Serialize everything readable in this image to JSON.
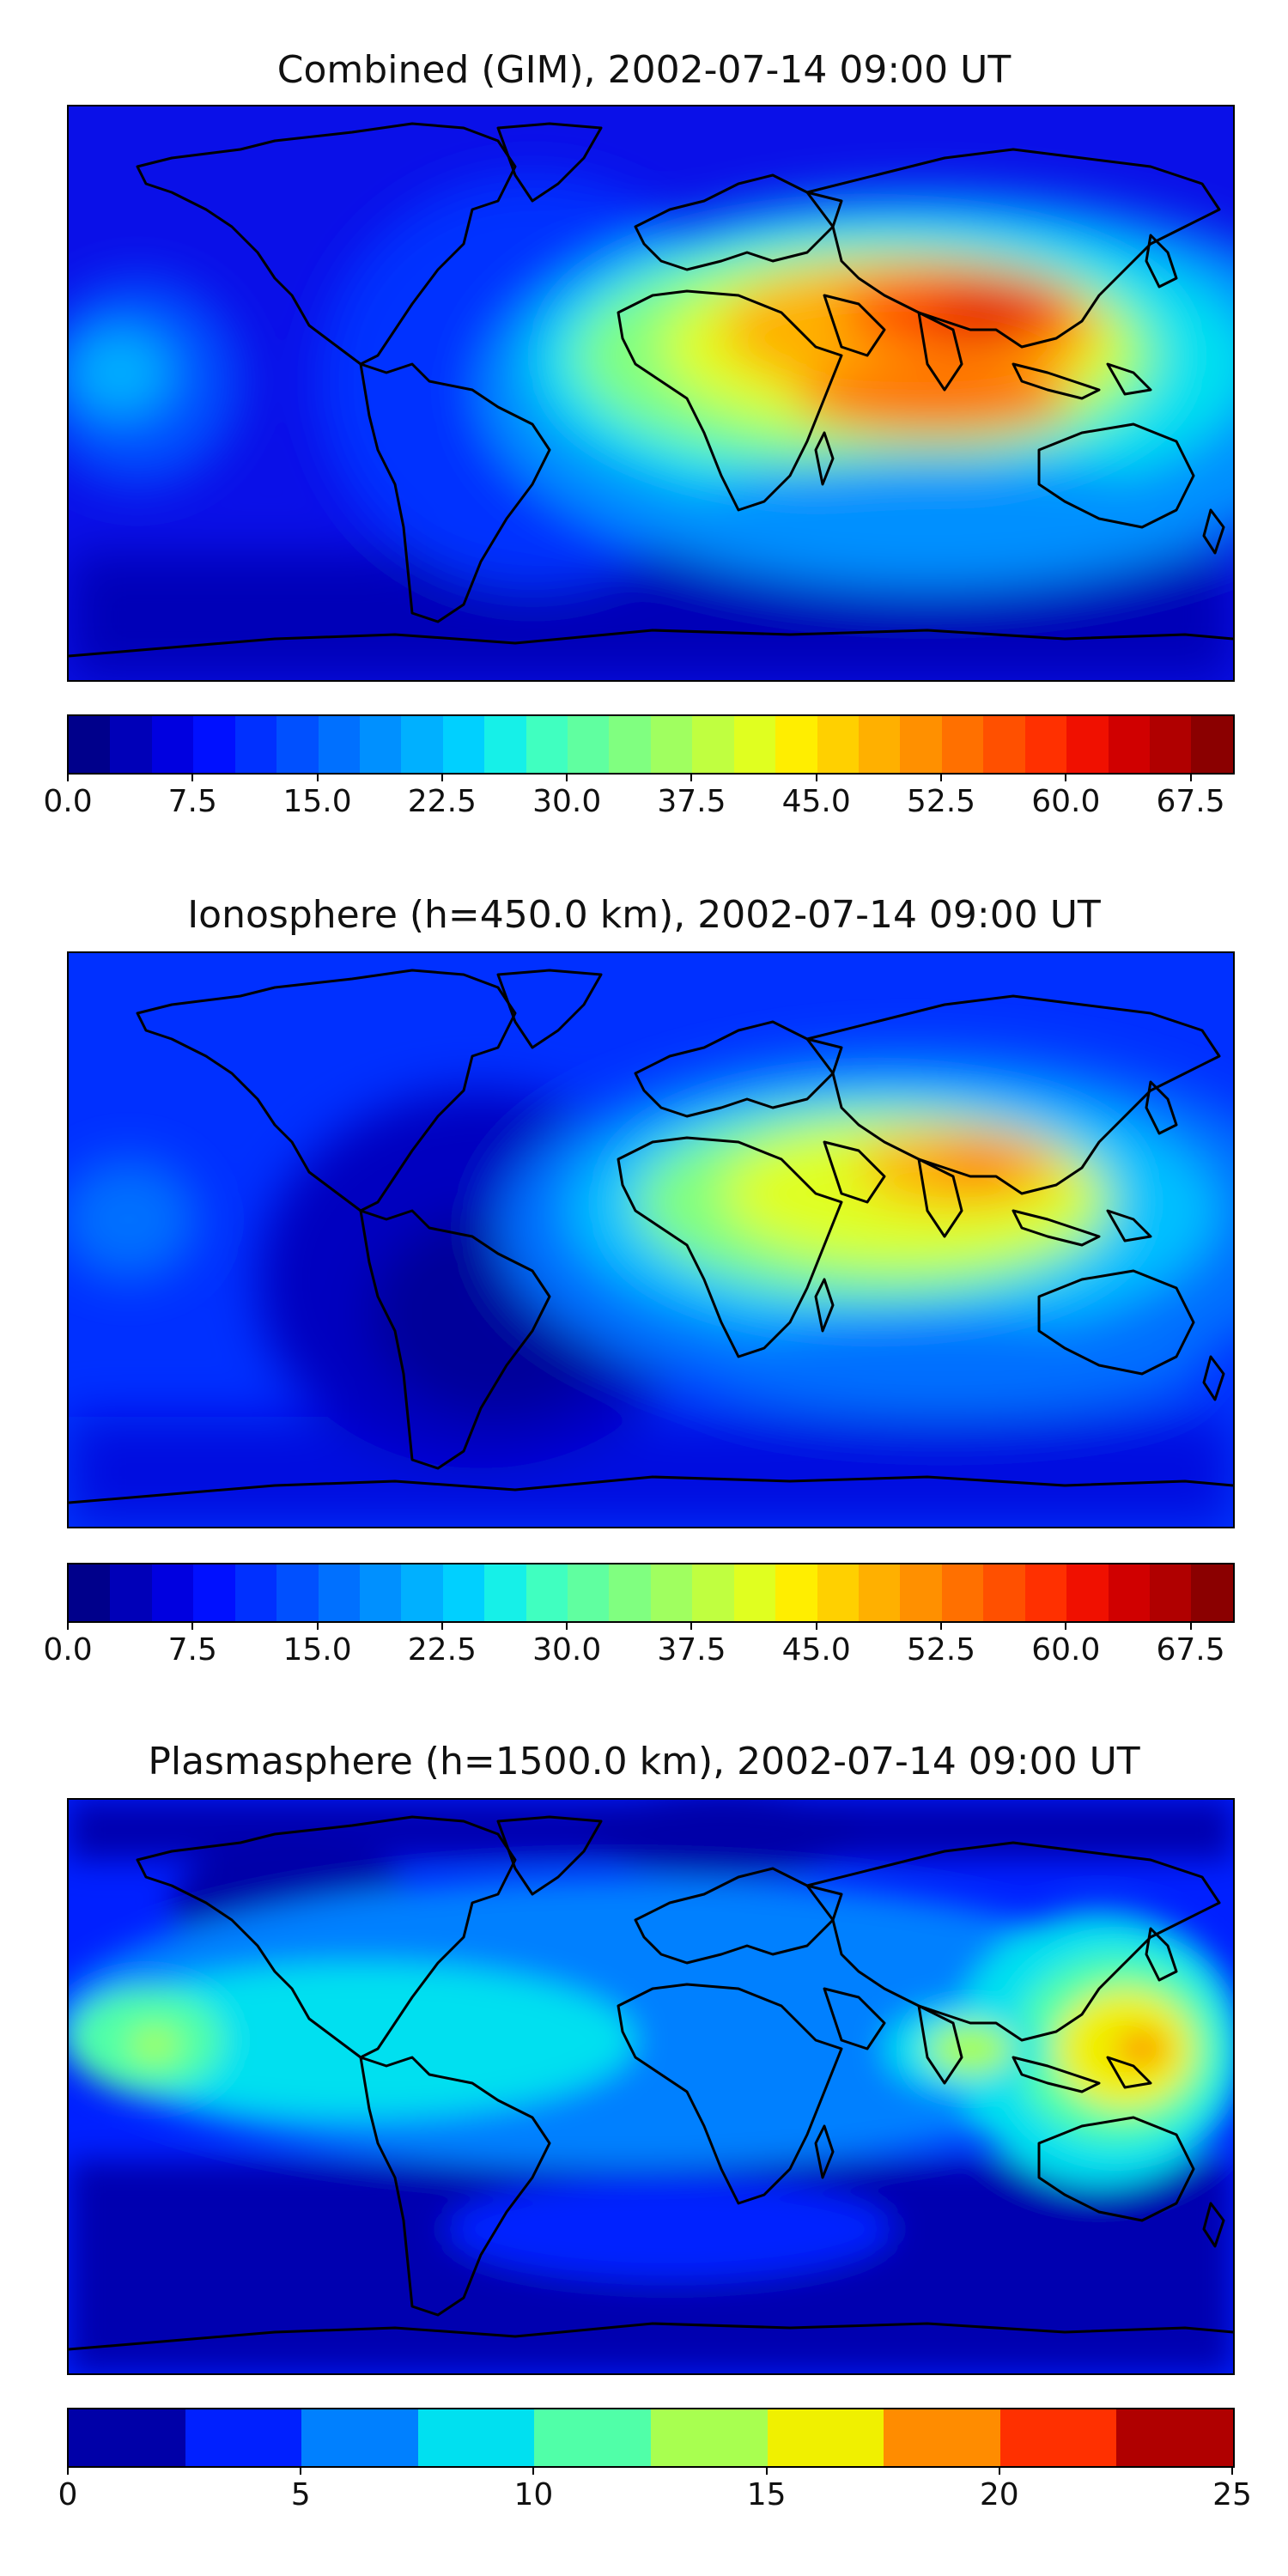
{
  "panels": [
    {
      "title": "Combined (GIM), 2002-07-14 09:00 UT",
      "field": "combined",
      "colorbar": {
        "levels": 28,
        "colors": [
          "#00008b",
          "#0000b8",
          "#0000e0",
          "#0010ff",
          "#0030ff",
          "#0050ff",
          "#0070ff",
          "#0090ff",
          "#00b0ff",
          "#00d0ff",
          "#16f0e8",
          "#40ffc0",
          "#60ffa0",
          "#80ff80",
          "#a0ff60",
          "#c0ff40",
          "#e0ff20",
          "#ffee00",
          "#ffd000",
          "#ffb000",
          "#ff9000",
          "#ff7000",
          "#ff5000",
          "#ff3000",
          "#f01000",
          "#d00000",
          "#b00000",
          "#8b0000"
        ],
        "tick_labels": [
          "0.0",
          "7.5",
          "15.0",
          "22.5",
          "30.0",
          "37.5",
          "45.0",
          "52.5",
          "60.0",
          "67.5"
        ],
        "tick_values": [
          0,
          7.5,
          15,
          22.5,
          30,
          37.5,
          45,
          52.5,
          60,
          67.5
        ],
        "vmin": 0,
        "vmax": 70
      }
    },
    {
      "title": "Ionosphere  (h=450.0 km), 2002-07-14 09:00 UT",
      "field": "ionosphere",
      "colorbar": {
        "levels": 28,
        "colors": [
          "#00008b",
          "#0000b8",
          "#0000e0",
          "#0010ff",
          "#0030ff",
          "#0050ff",
          "#0070ff",
          "#0090ff",
          "#00b0ff",
          "#00d0ff",
          "#16f0e8",
          "#40ffc0",
          "#60ffa0",
          "#80ff80",
          "#a0ff60",
          "#c0ff40",
          "#e0ff20",
          "#ffee00",
          "#ffd000",
          "#ffb000",
          "#ff9000",
          "#ff7000",
          "#ff5000",
          "#ff3000",
          "#f01000",
          "#d00000",
          "#b00000",
          "#8b0000"
        ],
        "tick_labels": [
          "0.0",
          "7.5",
          "15.0",
          "22.5",
          "30.0",
          "37.5",
          "45.0",
          "52.5",
          "60.0",
          "67.5"
        ],
        "tick_values": [
          0,
          7.5,
          15,
          22.5,
          30,
          37.5,
          45,
          52.5,
          60,
          67.5
        ],
        "vmin": 0,
        "vmax": 70
      }
    },
    {
      "title": "Plasmasphere (h=1500.0 km), 2002-07-14 09:00 UT",
      "field": "plasmasphere",
      "colorbar": {
        "levels": 10,
        "colors": [
          "#0000a8",
          "#0020ff",
          "#0080ff",
          "#00e0f0",
          "#50ffa8",
          "#a8ff50",
          "#f0f000",
          "#ff8c00",
          "#ff3000",
          "#b00000"
        ],
        "tick_labels": [
          "0",
          "5",
          "10",
          "15",
          "20",
          "25"
        ],
        "tick_values": [
          0,
          5,
          10,
          15,
          20,
          25
        ],
        "vmin": 0,
        "vmax": 25
      }
    }
  ]
}
